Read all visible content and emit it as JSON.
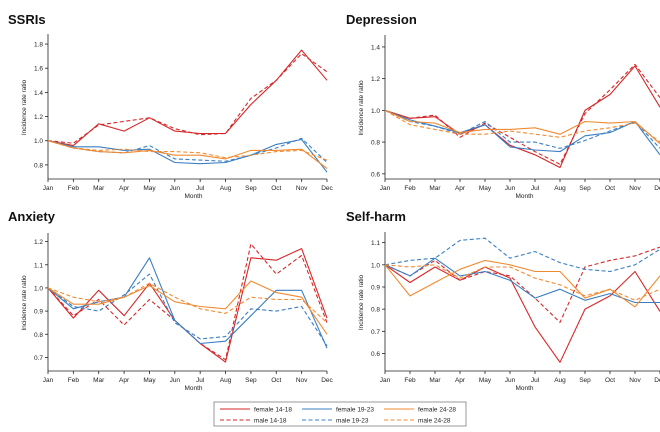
{
  "palette": {
    "female_14_18": "#d62728",
    "female_19_23": "#3a7fc4",
    "female_24_28": "#f28a30"
  },
  "legend": {
    "entries": [
      {
        "label": "female 14-18",
        "series": "female 14-18",
        "dashed": false
      },
      {
        "label": "female 19-23",
        "series": "female 19-23",
        "dashed": false
      },
      {
        "label": "female 24-28",
        "series": "female 24-28",
        "dashed": false
      },
      {
        "label": "male 14-18",
        "series": "male 14-18",
        "dashed": true
      },
      {
        "label": "male 19-23",
        "series": "male 19-23",
        "dashed": true
      },
      {
        "label": "male 24-28",
        "series": "male 24-28",
        "dashed": true
      }
    ]
  },
  "chart_data": [
    {
      "type": "line",
      "title": "SSRIs",
      "xlabel": "Month",
      "ylabel": "Incidence rate ratio",
      "categories": [
        "Jan",
        "Feb",
        "Mar",
        "Apr",
        "May",
        "Jun",
        "Jul",
        "Aug",
        "Sep",
        "Oct",
        "Nov",
        "Dec"
      ],
      "ylim": [
        0.7,
        1.85
      ],
      "yticks": [
        0.8,
        1.0,
        1.2,
        1.4,
        1.6,
        1.8
      ],
      "grid": false,
      "series": [
        {
          "name": "female 14-18",
          "values": [
            1.0,
            0.96,
            1.14,
            1.08,
            1.19,
            1.08,
            1.06,
            1.06,
            1.3,
            1.5,
            1.75,
            1.5
          ]
        },
        {
          "name": "male 14-18",
          "values": [
            1.0,
            0.98,
            1.13,
            1.16,
            1.19,
            1.1,
            1.05,
            1.06,
            1.35,
            1.5,
            1.72,
            1.57
          ]
        },
        {
          "name": "female 19-23",
          "values": [
            1.0,
            0.95,
            0.95,
            0.92,
            0.93,
            0.82,
            0.81,
            0.82,
            0.88,
            0.97,
            1.01,
            0.74
          ]
        },
        {
          "name": "male 19-23",
          "values": [
            1.0,
            0.94,
            0.91,
            0.9,
            0.96,
            0.85,
            0.84,
            0.83,
            0.88,
            0.94,
            1.02,
            0.82
          ]
        },
        {
          "name": "female 24-28",
          "values": [
            1.0,
            0.94,
            0.91,
            0.9,
            0.92,
            0.88,
            0.88,
            0.85,
            0.92,
            0.92,
            0.93,
            0.77
          ]
        },
        {
          "name": "male 24-28",
          "values": [
            1.0,
            0.94,
            0.92,
            0.93,
            0.91,
            0.91,
            0.9,
            0.86,
            0.88,
            0.91,
            0.92,
            0.84
          ]
        }
      ]
    },
    {
      "type": "line",
      "title": "Depression",
      "xlabel": "Month",
      "ylabel": "Incidence rate ratio",
      "categories": [
        "Jan",
        "Feb",
        "Mar",
        "Apr",
        "May",
        "Jun",
        "Jul",
        "Aug",
        "Sep",
        "Oct",
        "Nov",
        "Dec"
      ],
      "ylim": [
        0.58,
        1.45
      ],
      "yticks": [
        0.6,
        0.8,
        1.0,
        1.2,
        1.4
      ],
      "grid": false,
      "series": [
        {
          "name": "female 14-18",
          "values": [
            1.0,
            0.95,
            0.96,
            0.85,
            0.91,
            0.78,
            0.72,
            0.64,
            1.0,
            1.1,
            1.28,
            1.02
          ]
        },
        {
          "name": "male 14-18",
          "values": [
            1.0,
            0.95,
            0.97,
            0.83,
            0.92,
            0.83,
            0.74,
            0.66,
            0.98,
            1.13,
            1.29,
            1.08
          ]
        },
        {
          "name": "female 19-23",
          "values": [
            1.0,
            0.94,
            0.9,
            0.86,
            0.91,
            0.77,
            0.75,
            0.74,
            0.84,
            0.86,
            0.93,
            0.72
          ]
        },
        {
          "name": "male 19-23",
          "values": [
            1.0,
            0.93,
            0.9,
            0.85,
            0.93,
            0.8,
            0.8,
            0.76,
            0.81,
            0.87,
            0.93,
            0.76
          ]
        },
        {
          "name": "female 24-28",
          "values": [
            1.0,
            0.93,
            0.92,
            0.86,
            0.88,
            0.88,
            0.89,
            0.85,
            0.93,
            0.92,
            0.93,
            0.79
          ]
        },
        {
          "name": "male 24-28",
          "values": [
            1.0,
            0.91,
            0.88,
            0.85,
            0.85,
            0.87,
            0.85,
            0.83,
            0.87,
            0.89,
            0.92,
            0.8
          ]
        }
      ]
    },
    {
      "type": "line",
      "title": "Anxiety",
      "xlabel": "Month",
      "ylabel": "Incidence rate ratio",
      "categories": [
        "Jan",
        "Feb",
        "Mar",
        "Apr",
        "May",
        "Jun",
        "Jul",
        "Aug",
        "Sep",
        "Oct",
        "Nov",
        "Dec"
      ],
      "ylim": [
        0.65,
        1.22
      ],
      "yticks": [
        0.7,
        0.8,
        0.9,
        1.0,
        1.1,
        1.2
      ],
      "grid": false,
      "series": [
        {
          "name": "female 14-18",
          "values": [
            1.0,
            0.87,
            0.99,
            0.88,
            1.02,
            0.86,
            0.76,
            0.68,
            1.13,
            1.12,
            1.17,
            0.87
          ]
        },
        {
          "name": "male 14-18",
          "values": [
            1.0,
            0.88,
            0.95,
            0.84,
            0.95,
            0.86,
            0.76,
            0.69,
            1.19,
            1.06,
            1.14,
            0.85
          ]
        },
        {
          "name": "female 19-23",
          "values": [
            1.0,
            0.91,
            0.94,
            0.96,
            1.13,
            0.86,
            0.76,
            0.77,
            0.88,
            0.99,
            0.99,
            0.74
          ]
        },
        {
          "name": "male 19-23",
          "values": [
            1.0,
            0.92,
            0.9,
            0.97,
            1.06,
            0.85,
            0.78,
            0.79,
            0.91,
            0.9,
            0.92,
            0.75
          ]
        },
        {
          "name": "female 24-28",
          "values": [
            1.0,
            0.93,
            0.93,
            0.96,
            1.01,
            0.94,
            0.92,
            0.91,
            1.03,
            0.98,
            0.96,
            0.8
          ]
        },
        {
          "name": "male 24-28",
          "values": [
            1.0,
            0.96,
            0.94,
            0.96,
            1.02,
            0.96,
            0.91,
            0.89,
            0.96,
            0.95,
            0.95,
            0.85
          ]
        }
      ]
    },
    {
      "type": "line",
      "title": "Self-harm",
      "xlabel": "Month",
      "ylabel": "Incidence rate ratio",
      "categories": [
        "Jan",
        "Feb",
        "Mar",
        "Apr",
        "May",
        "Jun",
        "Jul",
        "Aug",
        "Sep",
        "Oct",
        "Nov",
        "Dec"
      ],
      "ylim": [
        0.53,
        1.13
      ],
      "yticks": [
        0.6,
        0.7,
        0.8,
        0.9,
        1.0,
        1.1
      ],
      "grid": false,
      "series": [
        {
          "name": "female 14-18",
          "values": [
            1.0,
            0.92,
            0.99,
            0.93,
            0.99,
            0.94,
            0.72,
            0.56,
            0.8,
            0.86,
            0.97,
            0.79
          ]
        },
        {
          "name": "male 14-18",
          "values": [
            1.0,
            0.95,
            1.02,
            0.93,
            0.97,
            0.95,
            0.85,
            0.74,
            0.99,
            1.02,
            1.04,
            1.08
          ]
        },
        {
          "name": "female 19-23",
          "values": [
            1.0,
            0.95,
            1.03,
            0.95,
            0.97,
            0.93,
            0.85,
            0.89,
            0.84,
            0.87,
            0.83,
            0.83
          ]
        },
        {
          "name": "male 19-23",
          "values": [
            1.0,
            1.02,
            1.03,
            1.11,
            1.12,
            1.03,
            1.06,
            1.01,
            0.98,
            0.97,
            1.0,
            1.07
          ]
        },
        {
          "name": "female 24-28",
          "values": [
            1.0,
            0.86,
            0.92,
            0.98,
            1.02,
            1.0,
            0.97,
            0.97,
            0.85,
            0.89,
            0.81,
            0.95
          ]
        },
        {
          "name": "male 24-28",
          "values": [
            1.0,
            0.99,
            1.0,
            0.94,
            0.99,
            0.99,
            0.94,
            0.91,
            0.86,
            0.89,
            0.84,
            0.89
          ]
        }
      ]
    }
  ]
}
